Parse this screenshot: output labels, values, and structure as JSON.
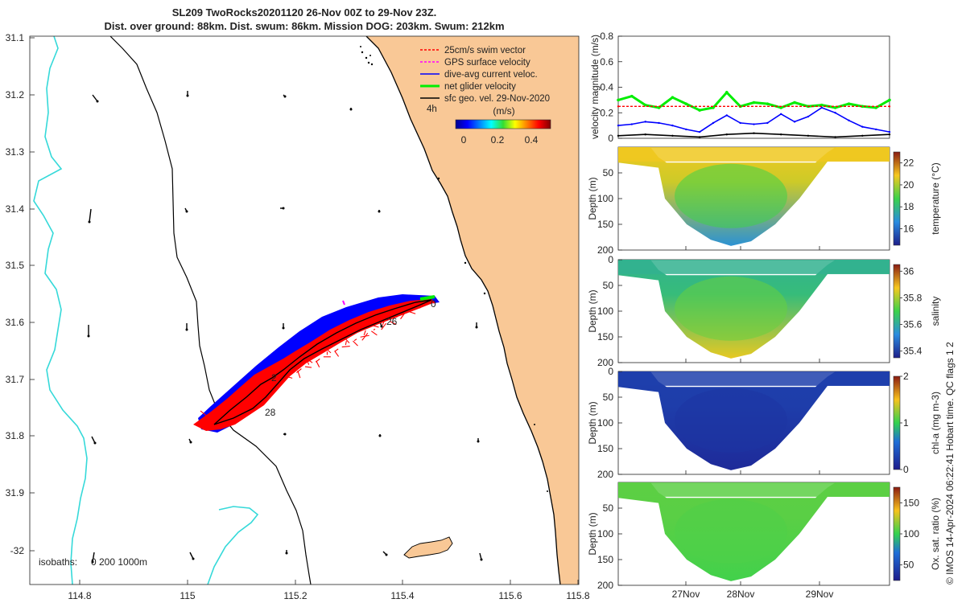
{
  "title": {
    "line1": "SL209 TwoRocks20201120 26-Nov 00Z to 29-Nov 23Z.",
    "line2": "Dist. over ground: 88km. Dist. swum: 86km. Mission DOG: 203km. Swum: 212km"
  },
  "colors": {
    "land": "#f9c896",
    "coast": "#000000",
    "isobath": "#35d9d9",
    "swim": "#ff0000",
    "gps": "#ff00ff",
    "current": "#0000ff",
    "net": "#00ee00",
    "geo": "#000000"
  },
  "map": {
    "xticks": [
      "114.8",
      "115",
      "115.2",
      "115.4",
      "115.6",
      "115.8"
    ],
    "yticks": [
      "31.1",
      "31.2",
      "31.3",
      "31.4",
      "31.5",
      "31.6",
      "31.7",
      "31.8",
      "31.9",
      "-32"
    ],
    "legend": [
      "25cm/s swim vector",
      "GPS surface velocity",
      "dive-avg current veloc.",
      "net glider velocity",
      "sfc geo. vel. 29-Nov-2020"
    ],
    "legend_note": "4h",
    "colorbar_title": "(m/s)",
    "colorbar_ticks": [
      "0",
      "0.2",
      "0.4"
    ],
    "isobaths_label": "isobaths:",
    "isobaths_values": "0  200  1000m",
    "track_labels": [
      "0",
      "26",
      "2",
      "28"
    ]
  },
  "side_note": "© IMOS 14-Apr-2024 06:22:41 Hobart time. QC flags 1  2",
  "chart_data": [
    {
      "type": "line",
      "ylabel": "velocity magnitude (m/s)",
      "ylim": [
        0,
        0.8
      ],
      "yticks": [
        "0",
        "0.2",
        "0.4",
        "0.6",
        "0.8"
      ],
      "x_range": [
        "26-Nov 00Z",
        "29-Nov 23Z"
      ],
      "series": [
        {
          "name": "net glider velocity",
          "color": "#00ee00",
          "x": [
            0,
            0.05,
            0.1,
            0.15,
            0.2,
            0.25,
            0.3,
            0.35,
            0.4,
            0.45,
            0.5,
            0.55,
            0.6,
            0.65,
            0.7,
            0.75,
            0.8,
            0.85,
            0.9,
            0.95,
            1
          ],
          "values": [
            0.3,
            0.33,
            0.26,
            0.24,
            0.32,
            0.27,
            0.22,
            0.24,
            0.36,
            0.25,
            0.28,
            0.27,
            0.24,
            0.28,
            0.25,
            0.26,
            0.24,
            0.27,
            0.25,
            0.24,
            0.3
          ]
        },
        {
          "name": "25cm/s swim vector",
          "color": "#ff0000",
          "x": [
            0,
            1
          ],
          "values": [
            0.25,
            0.25
          ]
        },
        {
          "name": "dive-avg current veloc.",
          "color": "#0000ff",
          "x": [
            0,
            0.05,
            0.1,
            0.15,
            0.2,
            0.25,
            0.3,
            0.35,
            0.4,
            0.45,
            0.5,
            0.55,
            0.6,
            0.65,
            0.7,
            0.75,
            0.8,
            0.85,
            0.9,
            0.95,
            1
          ],
          "values": [
            0.1,
            0.11,
            0.13,
            0.12,
            0.1,
            0.07,
            0.05,
            0.12,
            0.18,
            0.12,
            0.11,
            0.12,
            0.19,
            0.13,
            0.17,
            0.24,
            0.2,
            0.14,
            0.09,
            0.07,
            0.05
          ]
        },
        {
          "name": "sfc geo. vel. 29-Nov-2020",
          "color": "#000000",
          "x": [
            0,
            0.1,
            0.2,
            0.3,
            0.4,
            0.5,
            0.6,
            0.7,
            0.8,
            0.9,
            1
          ],
          "values": [
            0.02,
            0.03,
            0.02,
            0.01,
            0.03,
            0.04,
            0.03,
            0.02,
            0.01,
            0.02,
            0.03
          ]
        }
      ]
    },
    {
      "type": "heatmap",
      "ylabel": "Depth (m)",
      "yticks": [
        "50",
        "100",
        "150",
        "200"
      ],
      "ylim": [
        200,
        0
      ],
      "colorbar_label": "temperature (°C)",
      "colorbar_ticks": [
        "16",
        "18",
        "20",
        "22"
      ],
      "colorbar_range": [
        14.5,
        23
      ],
      "surface_value": 20.8,
      "deep_value": 16.8
    },
    {
      "type": "heatmap",
      "ylabel": "Depth (m)",
      "yticks": [
        "0",
        "50",
        "100",
        "150",
        "200"
      ],
      "ylim": [
        200,
        0
      ],
      "colorbar_label": "salinity",
      "colorbar_ticks": [
        "35.4",
        "35.6",
        "35.8",
        "36"
      ],
      "colorbar_range": [
        35.35,
        36.05
      ],
      "surface_value": 35.62,
      "deep_value": 35.86
    },
    {
      "type": "heatmap",
      "ylabel": "Depth (m)",
      "yticks": [
        "0",
        "50",
        "100",
        "150",
        "200"
      ],
      "ylim": [
        200,
        0
      ],
      "colorbar_label": "chl-a (mg m-3)",
      "colorbar_ticks": [
        "0",
        "1",
        "2"
      ],
      "colorbar_range": [
        0,
        2
      ],
      "surface_value": 0.25,
      "deep_value": 0.1
    },
    {
      "type": "heatmap",
      "ylabel": "Depth (m)",
      "yticks": [
        "50",
        "100",
        "150",
        "200"
      ],
      "ylim": [
        200,
        0
      ],
      "colorbar_label": "Ox. sat. ratio (%)",
      "colorbar_ticks": [
        "50",
        "100",
        "150"
      ],
      "colorbar_range": [
        25,
        175
      ],
      "surface_value": 108,
      "deep_value": 103,
      "xticks": [
        "27Nov",
        "28Nov",
        "29Nov"
      ]
    }
  ]
}
